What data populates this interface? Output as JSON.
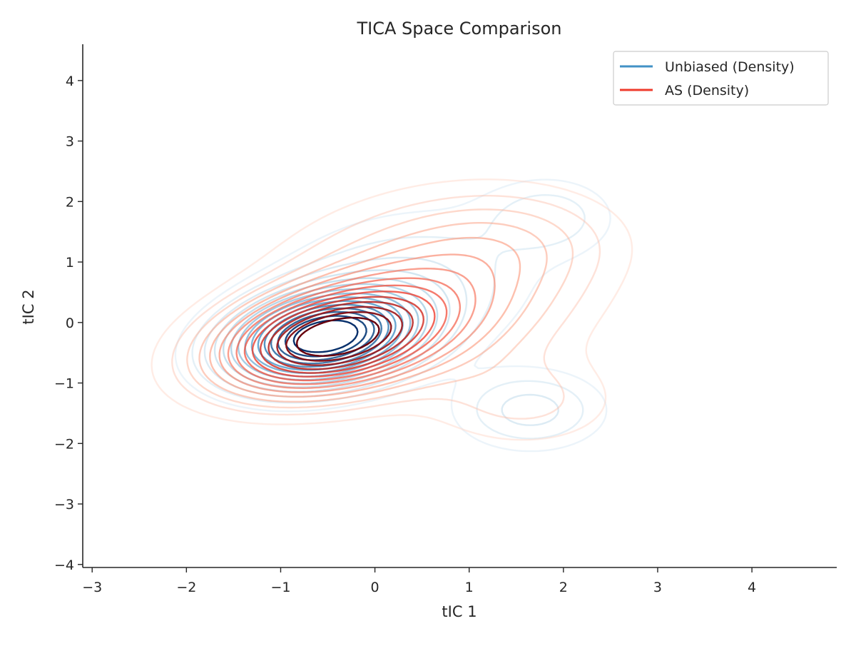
{
  "chart_data": {
    "type": "contour",
    "title": "TICA Space Comparison",
    "xlabel": "tIC 1",
    "ylabel": "tIC 2",
    "xlim": [
      -3.1,
      4.9
    ],
    "ylim": [
      -4.05,
      4.6
    ],
    "xticks": [
      -3,
      -2,
      -1,
      0,
      1,
      2,
      3,
      4
    ],
    "yticks": [
      -4,
      -3,
      -2,
      -1,
      0,
      1,
      2,
      3,
      4
    ],
    "grid": false,
    "legend_position": "top-right",
    "levels": 15,
    "series": [
      {
        "name": "Unbiased (Density)",
        "color": "#4292c6",
        "colormap": "Blues",
        "components": [
          {
            "mx": -0.55,
            "my": -0.25,
            "sx": 0.62,
            "sy": 0.48,
            "rho": 0.25,
            "w": 1.0
          },
          {
            "mx": 1.65,
            "my": -1.45,
            "sx": 0.5,
            "sy": 0.42,
            "rho": 0.0,
            "w": 0.16
          },
          {
            "mx": 1.85,
            "my": 1.75,
            "sx": 0.45,
            "sy": 0.42,
            "rho": 0.0,
            "w": 0.11
          },
          {
            "mx": 0.3,
            "my": 0.6,
            "sx": 0.9,
            "sy": 0.8,
            "rho": 0.2,
            "w": 0.14
          }
        ]
      },
      {
        "name": "AS (Density)",
        "color": "#ef3b2c",
        "colormap": "Reds",
        "components": [
          {
            "mx": -0.5,
            "my": -0.3,
            "sx": 0.75,
            "sy": 0.55,
            "rho": 0.3,
            "w": 1.0
          },
          {
            "mx": 0.6,
            "my": 0.5,
            "sx": 0.95,
            "sy": 0.85,
            "rho": 0.1,
            "w": 0.32
          },
          {
            "mx": 1.5,
            "my": 1.4,
            "sx": 0.75,
            "sy": 0.55,
            "rho": 0.0,
            "w": 0.1
          },
          {
            "mx": 1.6,
            "my": -1.3,
            "sx": 0.65,
            "sy": 0.5,
            "rho": 0.0,
            "w": 0.1
          }
        ]
      }
    ]
  }
}
